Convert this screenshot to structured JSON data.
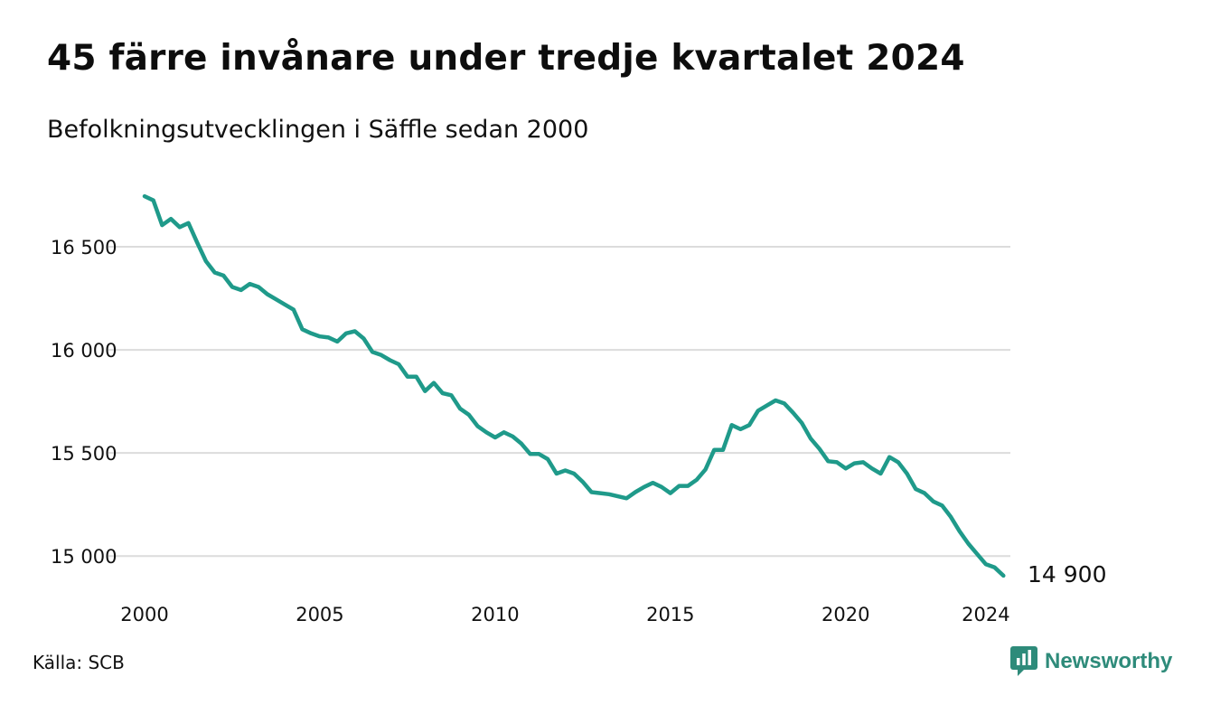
{
  "header": {
    "title": "45 färre invånare under tredje kvartalet 2024",
    "subtitle": "Befolkningsutvecklingen i Säffle sedan 2000"
  },
  "footer": {
    "source": "Källa: SCB",
    "brand": "Newsworthy",
    "brand_icon": "newsworthy-logo-icon"
  },
  "colors": {
    "line": "#1f9a8a",
    "grid": "#dcdcdc",
    "brand": "#2e8b7a",
    "text": "#111111"
  },
  "chart_data": {
    "type": "line",
    "title": "45 färre invånare under tredje kvartalet 2024",
    "subtitle": "Befolkningsutvecklingen i Säffle sedan 2000",
    "xlabel": "",
    "ylabel": "",
    "xlim": [
      2000,
      2024.75
    ],
    "ylim": [
      14830,
      16820
    ],
    "grid": "horizontal",
    "legend": "none",
    "x_ticks": [
      2000,
      2005,
      2010,
      2015,
      2020,
      2024
    ],
    "x_tick_labels": [
      "2000",
      "2005",
      "2010",
      "2015",
      "2020",
      "2024"
    ],
    "y_ticks": [
      15000,
      15500,
      16000,
      16500
    ],
    "y_tick_labels": [
      "15 000",
      "15 500",
      "16 000",
      "16 500"
    ],
    "end_label": "14 900",
    "series": [
      {
        "x": [
          2000.0,
          2000.25,
          2000.5,
          2000.75,
          2001.0,
          2001.25,
          2001.5,
          2001.75,
          2002.0,
          2002.25,
          2002.5,
          2002.75,
          2003.0,
          2003.25,
          2003.5,
          2003.75,
          2004.0,
          2004.25,
          2004.5,
          2004.75,
          2005.0,
          2005.25,
          2005.5,
          2005.75,
          2006.0,
          2006.25,
          2006.5,
          2006.75,
          2007.0,
          2007.25,
          2007.5,
          2007.75,
          2008.0,
          2008.25,
          2008.5,
          2008.75,
          2009.0,
          2009.25,
          2009.5,
          2009.75,
          2010.0,
          2010.25,
          2010.5,
          2010.75,
          2011.0,
          2011.25,
          2011.5,
          2011.75,
          2012.0,
          2012.25,
          2012.5,
          2012.75,
          2013.0,
          2013.25,
          2013.5,
          2013.75,
          2014.0,
          2014.25,
          2014.5,
          2014.75,
          2015.0,
          2015.25,
          2015.5,
          2015.75,
          2016.0,
          2016.25,
          2016.5,
          2016.75,
          2017.0,
          2017.25,
          2017.5,
          2017.75,
          2018.0,
          2018.25,
          2018.5,
          2018.75,
          2019.0,
          2019.25,
          2019.5,
          2019.75,
          2020.0,
          2020.25,
          2020.5,
          2020.75,
          2021.0,
          2021.25,
          2021.5,
          2021.75,
          2022.0,
          2022.25,
          2022.5,
          2022.75,
          2023.0,
          2023.25,
          2023.5,
          2023.75,
          2024.0,
          2024.25,
          2024.5
        ],
        "values": [
          16745,
          16725,
          16605,
          16635,
          16595,
          16615,
          16520,
          16430,
          16375,
          16360,
          16305,
          16290,
          16320,
          16305,
          16270,
          16245,
          16220,
          16195,
          16100,
          16080,
          16065,
          16060,
          16040,
          16080,
          16090,
          16055,
          15990,
          15975,
          15950,
          15930,
          15870,
          15870,
          15800,
          15840,
          15790,
          15780,
          15715,
          15685,
          15630,
          15600,
          15575,
          15600,
          15580,
          15545,
          15495,
          15495,
          15470,
          15400,
          15415,
          15400,
          15360,
          15310,
          15305,
          15300,
          15290,
          15280,
          15310,
          15335,
          15355,
          15335,
          15305,
          15340,
          15340,
          15370,
          15420,
          15515,
          15515,
          15635,
          15615,
          15635,
          15705,
          15730,
          15755,
          15740,
          15695,
          15645,
          15570,
          15520,
          15460,
          15455,
          15425,
          15450,
          15455,
          15425,
          15400,
          15480,
          15455,
          15400,
          15325,
          15305,
          15265,
          15245,
          15190,
          15120,
          15060,
          15010,
          14960,
          14945,
          14905
        ]
      }
    ]
  }
}
